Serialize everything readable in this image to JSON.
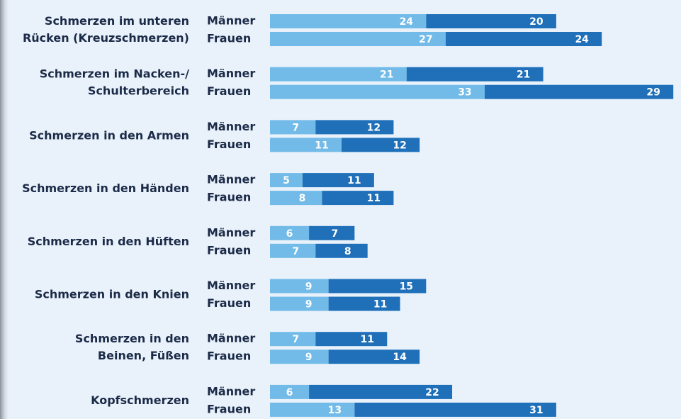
{
  "chart_data": {
    "type": "bar",
    "orientation": "horizontal",
    "stacked": true,
    "categories": [
      [
        "Schmerzen im unteren",
        "Rücken (Kreuzschmerzen)"
      ],
      [
        "Schmerzen im Nacken-/",
        "Schulterbereich"
      ],
      [
        "Schmerzen in den Armen"
      ],
      [
        "Schmerzen in den Händen"
      ],
      [
        "Schmerzen in den Hüften"
      ],
      [
        "Schmerzen in den Knien"
      ],
      [
        "Schmerzen in den",
        "Beinen, Füßen"
      ],
      [
        "Kopfschmerzen"
      ]
    ],
    "segment_colors": [
      "#72bbe8",
      "#1f70b9"
    ],
    "series": [
      {
        "name": "Männer",
        "values": [
          [
            24,
            20
          ],
          [
            21,
            21
          ],
          [
            7,
            12
          ],
          [
            5,
            11
          ],
          [
            6,
            7
          ],
          [
            9,
            15
          ],
          [
            7,
            11
          ],
          [
            6,
            22
          ]
        ]
      },
      {
        "name": "Frauen",
        "values": [
          [
            27,
            24
          ],
          [
            33,
            29
          ],
          [
            11,
            12
          ],
          [
            8,
            11
          ],
          [
            7,
            8
          ],
          [
            9,
            11
          ],
          [
            9,
            14
          ],
          [
            13,
            31
          ]
        ]
      }
    ]
  }
}
